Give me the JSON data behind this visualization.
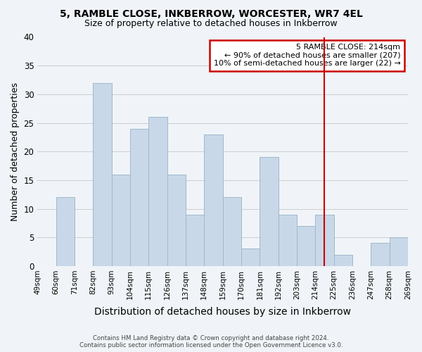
{
  "title1": "5, RAMBLE CLOSE, INKBERROW, WORCESTER, WR7 4EL",
  "title2": "Size of property relative to detached houses in Inkberrow",
  "xlabel": "Distribution of detached houses by size in Inkberrow",
  "ylabel": "Number of detached properties",
  "bin_labels": [
    "49sqm",
    "60sqm",
    "71sqm",
    "82sqm",
    "93sqm",
    "104sqm",
    "115sqm",
    "126sqm",
    "137sqm",
    "148sqm",
    "159sqm",
    "170sqm",
    "181sqm",
    "192sqm",
    "203sqm",
    "214sqm",
    "225sqm",
    "236sqm",
    "247sqm",
    "258sqm",
    "269sqm"
  ],
  "bar_values": [
    0,
    12,
    0,
    32,
    16,
    24,
    26,
    16,
    9,
    23,
    12,
    3,
    19,
    9,
    7,
    9,
    2,
    0,
    4,
    5
  ],
  "bar_color": "#c8d8e8",
  "bar_edge_color": "#a0b8cc",
  "vline_color": "#cc0000",
  "vline_position": 15.5,
  "annotation_line1": "5 RAMBLE CLOSE: 214sqm",
  "annotation_line2": "← 90% of detached houses are smaller (207)",
  "annotation_line3": "10% of semi-detached houses are larger (22) →",
  "annotation_box_color": "#ffffff",
  "annotation_box_edge": "#cc0000",
  "ylim": [
    0,
    40
  ],
  "yticks": [
    0,
    5,
    10,
    15,
    20,
    25,
    30,
    35,
    40
  ],
  "footer1": "Contains HM Land Registry data © Crown copyright and database right 2024.",
  "footer2": "Contains public sector information licensed under the Open Government Licence v3.0.",
  "background_color": "#f0f4f8",
  "grid_color": "#cccccc"
}
